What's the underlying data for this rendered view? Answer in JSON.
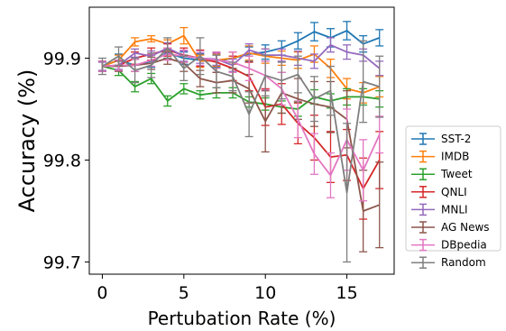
{
  "chart_data": {
    "type": "line",
    "xlabel": "Pertubation Rate (%)",
    "ylabel": "Accuracy (%)",
    "xlim": [
      -0.8,
      17.9
    ],
    "ylim": [
      99.688,
      99.95
    ],
    "xticks": [
      0,
      5,
      10,
      15
    ],
    "yticks": [
      99.7,
      99.8,
      99.9
    ],
    "x": [
      0,
      1,
      2,
      3,
      4,
      5,
      6,
      7,
      8,
      9,
      10,
      11,
      12,
      13,
      14,
      15,
      16,
      17
    ],
    "legend_position": "lower-right",
    "series": [
      {
        "name": "SST-2",
        "color": "#1f77b4",
        "values": [
          99.892,
          99.898,
          99.893,
          99.897,
          99.905,
          99.9,
          99.898,
          99.897,
          99.9,
          99.904,
          99.906,
          99.91,
          99.917,
          99.926,
          99.92,
          99.927,
          99.914,
          99.92
        ],
        "err": [
          0.005,
          0.006,
          0.006,
          0.006,
          0.005,
          0.006,
          0.006,
          0.006,
          0.006,
          0.007,
          0.007,
          0.007,
          0.008,
          0.009,
          0.009,
          0.009,
          0.008,
          0.008
        ]
      },
      {
        "name": "IMDB",
        "color": "#ff7f0e",
        "values": [
          99.892,
          99.898,
          99.916,
          99.919,
          99.914,
          99.922,
          99.897,
          99.898,
          99.9,
          99.905,
          99.902,
          99.9,
          99.898,
          99.904,
          99.89,
          99.87,
          99.866,
          99.872
        ],
        "err": [
          0.005,
          0.005,
          0.004,
          0.003,
          0.004,
          0.008,
          0.006,
          0.006,
          0.006,
          0.007,
          0.007,
          0.007,
          0.008,
          0.008,
          0.009,
          0.01,
          0.01,
          0.01
        ]
      },
      {
        "name": "Tweet",
        "color": "#2ca02c",
        "values": [
          99.892,
          99.888,
          99.872,
          99.88,
          99.858,
          99.87,
          99.864,
          99.866,
          99.866,
          99.857,
          99.855,
          99.852,
          99.85,
          99.862,
          99.858,
          99.862,
          99.862,
          99.86
        ],
        "err": [
          0.005,
          0.005,
          0.005,
          0.005,
          0.005,
          0.005,
          0.004,
          0.005,
          0.005,
          0.005,
          0.006,
          0.006,
          0.007,
          0.007,
          0.007,
          0.008,
          0.008,
          0.008
        ]
      },
      {
        "name": "QNLI",
        "color": "#d62728",
        "values": [
          99.892,
          99.893,
          99.9,
          99.904,
          99.908,
          99.903,
          99.9,
          99.896,
          99.89,
          99.882,
          99.852,
          99.855,
          99.836,
          99.822,
          99.803,
          99.805,
          99.772,
          99.8
        ],
        "err": [
          0.005,
          0.005,
          0.006,
          0.006,
          0.006,
          0.007,
          0.008,
          0.01,
          0.012,
          0.014,
          0.018,
          0.02,
          0.02,
          0.022,
          0.025,
          0.025,
          0.03,
          0.028
        ]
      },
      {
        "name": "MNLI",
        "color": "#9467bd",
        "values": [
          99.892,
          99.893,
          99.905,
          99.902,
          99.91,
          99.902,
          99.9,
          99.899,
          99.893,
          99.908,
          99.903,
          99.903,
          99.9,
          99.897,
          99.913,
          99.906,
          99.903,
          99.89
        ],
        "err": [
          0.004,
          0.004,
          0.004,
          0.005,
          0.005,
          0.005,
          0.005,
          0.006,
          0.006,
          0.006,
          0.006,
          0.006,
          0.007,
          0.007,
          0.007,
          0.007,
          0.006,
          0.007
        ]
      },
      {
        "name": "AG News",
        "color": "#8c564b",
        "values": [
          99.892,
          99.892,
          99.893,
          99.895,
          99.9,
          99.895,
          99.88,
          99.876,
          99.878,
          99.87,
          99.838,
          99.866,
          99.86,
          99.855,
          99.852,
          99.84,
          99.75,
          99.756
        ],
        "err": [
          0.005,
          0.005,
          0.006,
          0.006,
          0.006,
          0.008,
          0.008,
          0.01,
          0.012,
          0.014,
          0.03,
          0.02,
          0.02,
          0.022,
          0.025,
          0.028,
          0.04,
          0.042
        ]
      },
      {
        "name": "DBpedia",
        "color": "#e377c2",
        "values": [
          99.892,
          99.893,
          99.893,
          99.898,
          99.904,
          99.902,
          99.9,
          99.898,
          99.896,
          99.89,
          99.883,
          99.87,
          99.84,
          99.806,
          99.785,
          99.82,
          99.79,
          99.825
        ],
        "err": [
          0.005,
          0.005,
          0.006,
          0.006,
          0.006,
          0.006,
          0.007,
          0.008,
          0.01,
          0.012,
          0.014,
          0.016,
          0.018,
          0.02,
          0.022,
          0.03,
          0.03,
          0.018
        ]
      },
      {
        "name": "Random",
        "color": "#7f7f7f",
        "values": [
          99.892,
          99.902,
          99.888,
          99.893,
          99.91,
          99.89,
          99.902,
          99.887,
          99.882,
          99.845,
          99.883,
          99.878,
          99.884,
          99.86,
          99.868,
          99.768,
          99.877,
          99.872
        ],
        "err": [
          0.008,
          0.009,
          0.012,
          0.012,
          0.01,
          0.012,
          0.018,
          0.016,
          0.014,
          0.022,
          0.02,
          0.018,
          0.018,
          0.022,
          0.024,
          0.068,
          0.04,
          0.03
        ]
      }
    ]
  }
}
